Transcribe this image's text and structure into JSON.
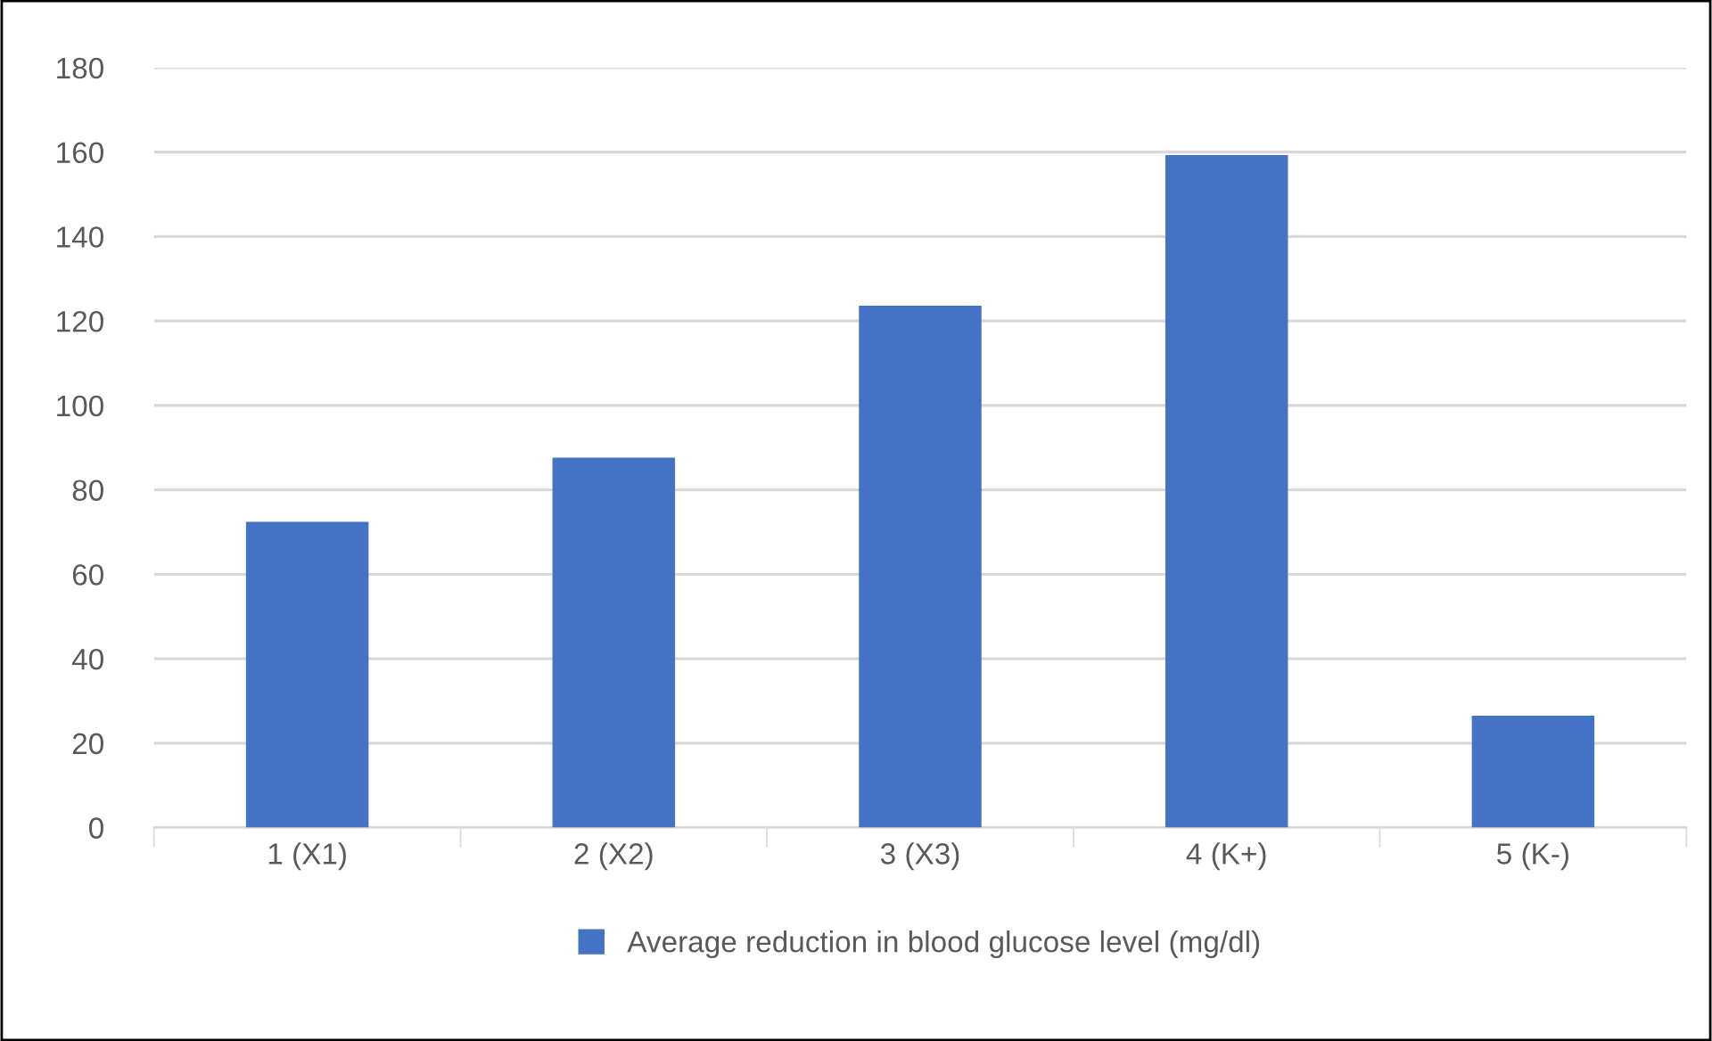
{
  "chart_data": {
    "type": "bar",
    "categories": [
      "1 (X1)",
      "2 (X2)",
      "3 (X3)",
      "4 (K+)",
      "5 (K-)"
    ],
    "series": [
      {
        "name": "Average reduction in blood glucose level (mg/dl)",
        "color": "#4472c4",
        "values": [
          72.4,
          87.6,
          123.6,
          159.3,
          26.5
        ]
      }
    ],
    "ylim": [
      0,
      180
    ],
    "yticks": [
      0,
      20,
      40,
      60,
      80,
      100,
      120,
      140,
      160,
      180
    ],
    "grid": "y",
    "legend": "bottom"
  }
}
